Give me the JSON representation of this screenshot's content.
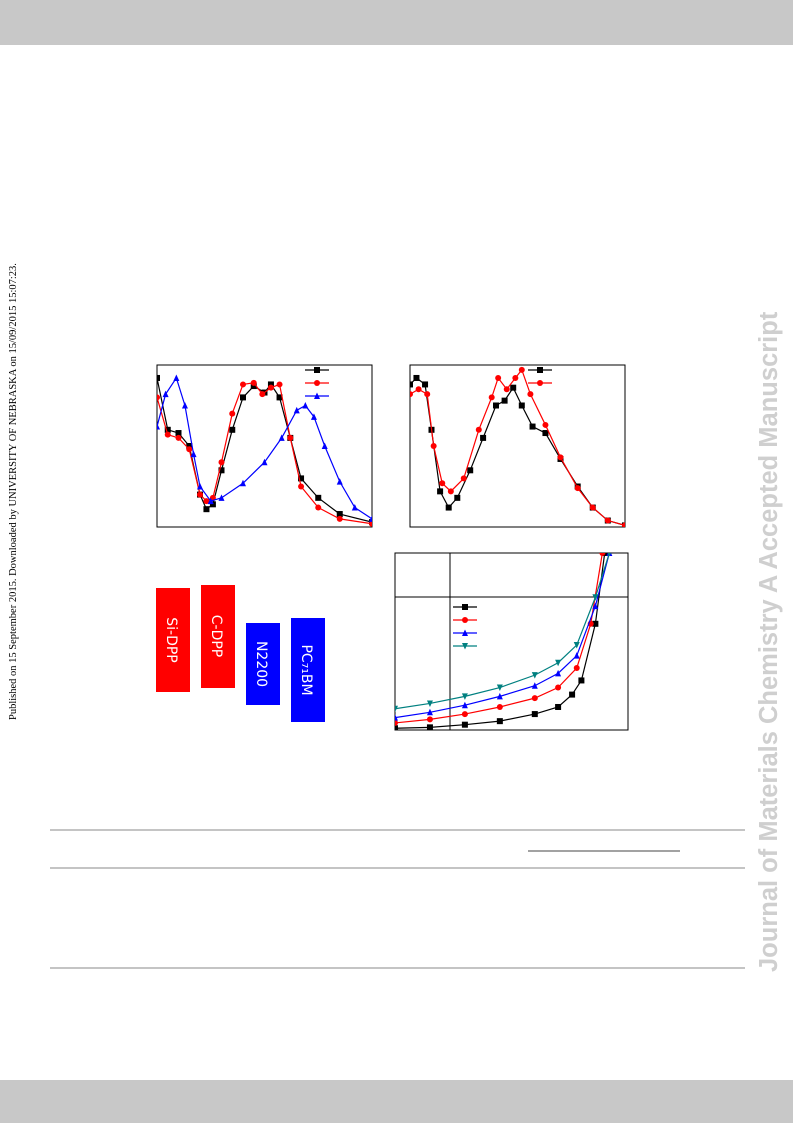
{
  "side_note": "Published on 15 September 2015. Downloaded by UNIVERSITY OF NEBRASKA on 15/09/2015 15:07:23.",
  "watermark": "Journal of Materials Chemistry A Accepted Manuscript",
  "energy_levels": [
    "Si-DPP",
    "C-DPP",
    "N2200",
    "PC₇₁BM"
  ],
  "chart_data": [
    {
      "type": "line",
      "xlim": [
        0,
        100
      ],
      "ylim": [
        0,
        100
      ],
      "series": [
        {
          "color": "#000000",
          "marker": "square",
          "x": [
            0,
            5,
            10,
            15,
            20,
            23,
            26,
            30,
            35,
            40,
            45,
            50,
            53,
            57,
            62,
            67,
            75,
            85,
            100
          ],
          "values": [
            92,
            60,
            58,
            50,
            20,
            11,
            14,
            35,
            60,
            80,
            87,
            83,
            88,
            80,
            55,
            30,
            18,
            8,
            3
          ]
        },
        {
          "color": "#ff0000",
          "marker": "circle",
          "x": [
            0,
            5,
            10,
            15,
            20,
            23,
            26,
            30,
            35,
            40,
            45,
            49,
            53,
            57,
            62,
            67,
            75,
            85,
            100
          ],
          "values": [
            80,
            57,
            55,
            48,
            20,
            16,
            18,
            40,
            70,
            88,
            89,
            82,
            86,
            88,
            55,
            25,
            12,
            5,
            2
          ]
        },
        {
          "color": "#0000ff",
          "marker": "triangle",
          "x": [
            0,
            4,
            9,
            13,
            17,
            20,
            25,
            30,
            40,
            50,
            58,
            65,
            69,
            73,
            78,
            85,
            92,
            100
          ],
          "values": [
            62,
            82,
            92,
            75,
            45,
            25,
            16,
            18,
            27,
            40,
            55,
            72,
            75,
            68,
            50,
            28,
            12,
            5
          ]
        }
      ]
    },
    {
      "type": "line",
      "xlim": [
        0,
        100
      ],
      "ylim": [
        0,
        100
      ],
      "series": [
        {
          "color": "#000000",
          "marker": "square",
          "x": [
            0,
            3,
            7,
            10,
            14,
            18,
            22,
            28,
            34,
            40,
            44,
            48,
            52,
            57,
            63,
            70,
            78,
            85,
            92,
            100
          ],
          "values": [
            88,
            92,
            88,
            60,
            22,
            12,
            18,
            35,
            55,
            75,
            78,
            86,
            75,
            62,
            58,
            42,
            25,
            12,
            4,
            1
          ]
        },
        {
          "color": "#ff0000",
          "marker": "circle",
          "x": [
            0,
            4,
            8,
            11,
            15,
            19,
            25,
            32,
            38,
            41,
            45,
            49,
            52,
            56,
            63,
            70,
            78,
            85,
            92,
            100
          ],
          "values": [
            82,
            85,
            82,
            50,
            27,
            22,
            30,
            60,
            80,
            92,
            85,
            92,
            97,
            82,
            63,
            43,
            24,
            12,
            4,
            1
          ]
        }
      ]
    },
    {
      "type": "line",
      "xlim": [
        0,
        100
      ],
      "ylim": [
        0,
        100
      ],
      "series": [
        {
          "color": "#000000",
          "marker": "square",
          "x": [
            0,
            15,
            30,
            45,
            60,
            70,
            76,
            80,
            86,
            90,
            93
          ],
          "values": [
            1,
            1.5,
            3,
            5,
            9,
            13,
            20,
            28,
            60,
            100,
            120
          ]
        },
        {
          "color": "#ff0000",
          "marker": "circle",
          "x": [
            0,
            15,
            30,
            45,
            60,
            70,
            78,
            84,
            89,
            92
          ],
          "values": [
            4,
            6,
            9,
            13,
            18,
            24,
            35,
            60,
            100,
            120
          ]
        },
        {
          "color": "#0000ff",
          "marker": "triangle",
          "x": [
            0,
            15,
            30,
            45,
            60,
            70,
            78,
            86,
            92,
            96
          ],
          "values": [
            7,
            10,
            14,
            19,
            25,
            32,
            42,
            70,
            100,
            130
          ]
        },
        {
          "color": "#008080",
          "marker": "triangle-down",
          "x": [
            0,
            15,
            30,
            45,
            60,
            70,
            78,
            86,
            92,
            100
          ],
          "values": [
            12,
            15,
            19,
            24,
            31,
            38,
            48,
            75,
            100,
            120
          ]
        }
      ]
    }
  ]
}
